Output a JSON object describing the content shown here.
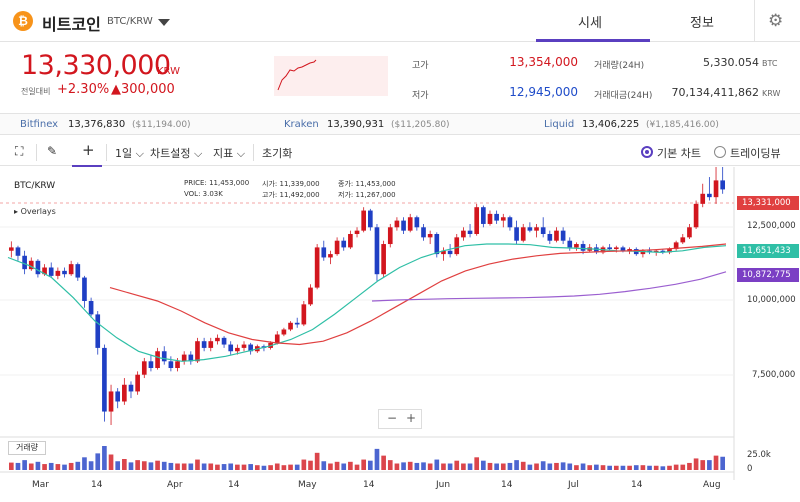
{
  "header": {
    "coin_icon": "₿",
    "coin_name": "비트코인",
    "pair": "BTC/KRW",
    "tabs": [
      {
        "label": "시세"
      },
      {
        "label": "정보"
      }
    ],
    "settings_icon": "⚙"
  },
  "ticker": {
    "price": "13,330,000",
    "unit": "KRW",
    "change_label": "전일대비",
    "change_pct": "+2.30%",
    "change_amount": "▲300,000"
  },
  "stats": {
    "high_label": "고가",
    "high": "13,354,000",
    "low_label": "저가",
    "low": "12,945,000",
    "volume_label": "거래량(24H)",
    "volume": "5,330.054",
    "volume_unit": "BTC",
    "amount_label": "거래대금(24H)",
    "amount": "70,134,411,862",
    "amount_unit": "KRW"
  },
  "exchanges": [
    {
      "name": "Bitfinex",
      "value": "13,376,830",
      "sub": "($11,194.00)"
    },
    {
      "name": "Kraken",
      "value": "13,390,931",
      "sub": "($11,205.80)"
    },
    {
      "name": "Liquid",
      "value": "13,406,225",
      "sub": "(¥1,185,416.00)"
    }
  ],
  "toolbar": {
    "fullscreen_icon": "⛶",
    "draw_icon": "✎",
    "crosshair_icon": "+",
    "interval": "1일",
    "chart_settings": "차트설정",
    "indicators": "지표",
    "reset": "초기화",
    "basic_chart": "기본 차트",
    "tradingview": "트레이딩뷰"
  },
  "chart": {
    "pair_label": "BTC/KRW",
    "overlays_label": "Overlays",
    "ohlc": {
      "price_label": "PRICE:",
      "price": "11,453,000",
      "vol_label": "VOL:",
      "vol": "3.03K",
      "open_label": "시가:",
      "open": "11,339,000",
      "high_label": "고가:",
      "high": "11,492,000",
      "close_label": "종가:",
      "close": "11,453,000",
      "low_label": "저가:",
      "low": "11,267,000"
    },
    "volume_label": "거래량",
    "zoom_out": "−",
    "zoom_in": "+",
    "tags": [
      {
        "value": "13,331,000",
        "color": "#e04040"
      },
      {
        "value": "11,651,433",
        "color": "#2fbfa6"
      },
      {
        "value": "10,872,775",
        "color": "#7b3fc4"
      }
    ],
    "y_labels": [
      "12,500,000",
      "10,000,000",
      "7,500,000"
    ],
    "vol_y_labels": [
      "25.0k",
      "0"
    ],
    "x_labels": [
      "Mar",
      "14",
      "Apr",
      "14",
      "May",
      "14",
      "Jun",
      "14",
      "Jul",
      "14",
      "Aug"
    ]
  },
  "chart_data": {
    "type": "candlestick",
    "ylim": [
      6000000,
      14000000
    ],
    "volume_ylim": [
      0,
      30000
    ],
    "candles": [
      [
        11500000,
        11780000,
        11300000,
        11600000
      ],
      [
        11600000,
        11650000,
        11200000,
        11350000
      ],
      [
        11350000,
        11500000,
        10800000,
        10950000
      ],
      [
        10950000,
        11300000,
        10900000,
        11200000
      ],
      [
        11200000,
        11250000,
        10700000,
        10800000
      ],
      [
        10800000,
        11100000,
        10750000,
        11000000
      ],
      [
        11000000,
        11150000,
        10700000,
        10750000
      ],
      [
        10750000,
        11000000,
        10650000,
        10900000
      ],
      [
        10900000,
        11000000,
        10700000,
        10800000
      ],
      [
        10800000,
        11200000,
        10750000,
        11100000
      ],
      [
        11100000,
        11150000,
        10600000,
        10700000
      ],
      [
        10700000,
        10750000,
        9800000,
        10000000
      ],
      [
        10000000,
        10100000,
        9500000,
        9600000
      ],
      [
        9600000,
        9700000,
        8400000,
        8600000
      ],
      [
        8600000,
        8700000,
        6400000,
        6700000
      ],
      [
        6700000,
        7500000,
        6300000,
        7300000
      ],
      [
        7300000,
        7400000,
        6800000,
        7000000
      ],
      [
        7000000,
        7700000,
        6900000,
        7500000
      ],
      [
        7500000,
        7600000,
        7100000,
        7300000
      ],
      [
        7300000,
        7900000,
        7200000,
        7800000
      ],
      [
        7800000,
        8300000,
        7700000,
        8200000
      ],
      [
        8200000,
        8400000,
        7900000,
        8000000
      ],
      [
        8000000,
        8600000,
        7950000,
        8500000
      ],
      [
        8500000,
        8650000,
        8100000,
        8200000
      ],
      [
        8200000,
        8350000,
        7900000,
        8000000
      ],
      [
        8000000,
        8300000,
        7900000,
        8200000
      ],
      [
        8200000,
        8500000,
        8100000,
        8400000
      ],
      [
        8400000,
        8500000,
        8100000,
        8200000
      ],
      [
        8200000,
        8900000,
        8150000,
        8800000
      ],
      [
        8800000,
        8900000,
        8500000,
        8600000
      ],
      [
        8600000,
        8900000,
        8500000,
        8800000
      ],
      [
        8800000,
        9000000,
        8700000,
        8900000
      ],
      [
        8900000,
        8950000,
        8600000,
        8700000
      ],
      [
        8700000,
        8800000,
        8400000,
        8500000
      ],
      [
        8500000,
        8700000,
        8400000,
        8600000
      ],
      [
        8600000,
        8800000,
        8500000,
        8700000
      ],
      [
        8700000,
        8750000,
        8400000,
        8500000
      ],
      [
        8500000,
        8700000,
        8450000,
        8650000
      ],
      [
        8650000,
        8700000,
        8500000,
        8600000
      ],
      [
        8600000,
        8800000,
        8550000,
        8750000
      ],
      [
        8750000,
        9100000,
        8700000,
        9000000
      ],
      [
        9000000,
        9200000,
        8950000,
        9150000
      ],
      [
        9150000,
        9400000,
        9100000,
        9350000
      ],
      [
        9350000,
        9500000,
        9200000,
        9300000
      ],
      [
        9300000,
        10000000,
        9250000,
        9900000
      ],
      [
        9900000,
        10500000,
        9850000,
        10400000
      ],
      [
        10400000,
        11700000,
        10350000,
        11600000
      ],
      [
        11600000,
        11800000,
        11200000,
        11300000
      ],
      [
        11300000,
        11500000,
        11100000,
        11400000
      ],
      [
        11400000,
        11900000,
        11350000,
        11800000
      ],
      [
        11800000,
        11900000,
        11500000,
        11600000
      ],
      [
        11600000,
        12100000,
        11550000,
        12000000
      ],
      [
        12000000,
        12200000,
        11900000,
        12100000
      ],
      [
        12100000,
        12800000,
        12050000,
        12700000
      ],
      [
        12700000,
        12750000,
        12100000,
        12200000
      ],
      [
        12200000,
        12300000,
        10600000,
        10800000
      ],
      [
        10800000,
        11800000,
        10700000,
        11700000
      ],
      [
        11700000,
        12300000,
        11600000,
        12200000
      ],
      [
        12200000,
        12500000,
        12100000,
        12400000
      ],
      [
        12400000,
        12500000,
        12000000,
        12100000
      ],
      [
        12100000,
        12600000,
        12050000,
        12500000
      ],
      [
        12500000,
        12550000,
        12100000,
        12200000
      ],
      [
        12200000,
        12300000,
        11800000,
        11900000
      ],
      [
        11900000,
        12100000,
        11700000,
        12000000
      ],
      [
        12000000,
        12050000,
        11300000,
        11400000
      ],
      [
        11400000,
        11600000,
        11200000,
        11500000
      ],
      [
        11500000,
        11700000,
        11300000,
        11400000
      ],
      [
        11400000,
        12000000,
        11350000,
        11900000
      ],
      [
        11900000,
        12200000,
        11800000,
        12100000
      ],
      [
        12100000,
        12300000,
        11900000,
        12000000
      ],
      [
        12000000,
        12900000,
        11950000,
        12800000
      ],
      [
        12800000,
        12850000,
        12200000,
        12300000
      ],
      [
        12300000,
        12700000,
        12250000,
        12600000
      ],
      [
        12600000,
        12700000,
        12300000,
        12400000
      ],
      [
        12400000,
        12600000,
        12200000,
        12500000
      ],
      [
        12500000,
        12550000,
        12100000,
        12200000
      ],
      [
        12200000,
        12400000,
        11700000,
        11800000
      ],
      [
        11800000,
        12300000,
        11750000,
        12200000
      ],
      [
        12200000,
        12350000,
        12050000,
        12100000
      ],
      [
        12100000,
        12300000,
        11900000,
        12200000
      ],
      [
        12200000,
        12500000,
        11900000,
        12000000
      ],
      [
        12000000,
        12100000,
        11700000,
        11800000
      ],
      [
        11800000,
        12200000,
        11750000,
        12100000
      ],
      [
        12100000,
        12200000,
        11700000,
        11800000
      ],
      [
        11800000,
        11900000,
        11500000,
        11600000
      ],
      [
        11600000,
        11750000,
        11500000,
        11700000
      ],
      [
        11700000,
        11800000,
        11400000,
        11500000
      ],
      [
        11500000,
        11700000,
        11450000,
        11600000
      ],
      [
        11600000,
        11700000,
        11400000,
        11450000
      ],
      [
        11450000,
        11650000,
        11400000,
        11600000
      ],
      [
        11600000,
        11700000,
        11500000,
        11550000
      ],
      [
        11550000,
        11650000,
        11450000,
        11600000
      ],
      [
        11600000,
        11650000,
        11450000,
        11500000
      ],
      [
        11500000,
        11600000,
        11400000,
        11550000
      ],
      [
        11550000,
        11600000,
        11350000,
        11400000
      ],
      [
        11400000,
        11550000,
        11300000,
        11500000
      ],
      [
        11500000,
        11600000,
        11400000,
        11450000
      ],
      [
        11450000,
        11550000,
        11350000,
        11500000
      ],
      [
        11500000,
        11550000,
        11400000,
        11450000
      ],
      [
        11450000,
        11600000,
        11400000,
        11550000
      ],
      [
        11550000,
        11800000,
        11500000,
        11750000
      ],
      [
        11750000,
        12000000,
        11700000,
        11900000
      ],
      [
        11900000,
        12300000,
        11850000,
        12200000
      ],
      [
        12200000,
        13000000,
        12150000,
        12900000
      ],
      [
        12900000,
        13500000,
        12800000,
        13200000
      ],
      [
        13200000,
        13700000,
        13000000,
        13100000
      ],
      [
        13100000,
        14000000,
        12900000,
        13600000
      ],
      [
        13600000,
        14200000,
        13200000,
        13331000
      ]
    ],
    "ma_short": [
      11300000,
      11050000,
      10700000,
      10100000,
      9400000,
      8900000,
      8500000,
      8300000,
      8200000,
      8250000,
      8350000,
      8500000,
      8650000,
      8850000,
      9150000,
      9600000,
      10100000,
      10600000,
      11000000,
      11300000,
      11500000,
      11650000,
      11700000,
      11700000,
      11680000,
      11600000,
      11580000,
      11550000,
      11500000,
      11480000,
      11450000,
      11500000,
      11600000,
      11651433
    ],
    "ma_long": [
      10400000,
      10200000,
      10000000,
      9700000,
      9350000,
      9050000,
      8850000,
      8750000,
      8700000,
      8800000,
      9050000,
      9400000,
      9800000,
      10200000,
      10600000,
      10900000,
      11100000,
      11250000,
      11350000,
      11420000,
      11450000,
      11480000,
      11500000,
      11530000,
      11580000,
      11630000,
      11700000
    ],
    "ma_longest": [
      10000000,
      10030000,
      10050000,
      10070000,
      10080000,
      10090000,
      10100000,
      10120000,
      10150000,
      10200000,
      10280000,
      10380000,
      10500000,
      10650000,
      10872775
    ]
  }
}
